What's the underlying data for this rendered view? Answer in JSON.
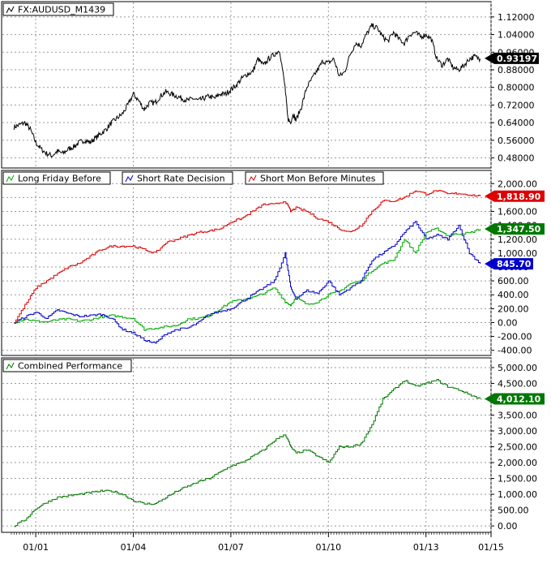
{
  "chart_data": [
    {
      "type": "line",
      "panel": "price",
      "series": [
        {
          "name": "FX:AUDUSD_M1439",
          "color": "#000000",
          "x": [
            "2000-05",
            "2000-07",
            "2000-09",
            "2000-11",
            "2001-01",
            "2001-03",
            "2001-05",
            "2001-07",
            "2001-09",
            "2001-11",
            "2002-01",
            "2002-03",
            "2002-05",
            "2002-07",
            "2002-09",
            "2002-11",
            "2003-01",
            "2003-03",
            "2003-05",
            "2003-07",
            "2003-09",
            "2003-11",
            "2004-01",
            "2004-03",
            "2004-05",
            "2004-07",
            "2004-09",
            "2004-11",
            "2005-01",
            "2005-03",
            "2005-05",
            "2005-07",
            "2005-09",
            "2005-11",
            "2006-01",
            "2006-03",
            "2006-05",
            "2006-07",
            "2006-09",
            "2006-11",
            "2007-01",
            "2007-03",
            "2007-05",
            "2007-07",
            "2007-09",
            "2007-11",
            "2008-01",
            "2008-03",
            "2008-05",
            "2008-07",
            "2008-09",
            "2008-10",
            "2008-11",
            "2008-12",
            "2009-01",
            "2009-03",
            "2009-05",
            "2009-07",
            "2009-09",
            "2009-11",
            "2010-01",
            "2010-03",
            "2010-05",
            "2010-07",
            "2010-09",
            "2010-11",
            "2011-01",
            "2011-03",
            "2011-05",
            "2011-07",
            "2011-09",
            "2011-11",
            "2012-01",
            "2012-03",
            "2012-05",
            "2012-07",
            "2012-09",
            "2012-11",
            "2013-01",
            "2013-03",
            "2013-05",
            "2013-07",
            "2013-09",
            "2013-11",
            "2014-01",
            "2014-03",
            "2014-05",
            "2014-07",
            "2014-09"
          ],
          "values": [
            0.62,
            0.63,
            0.64,
            0.61,
            0.55,
            0.52,
            0.5,
            0.49,
            0.51,
            0.5,
            0.52,
            0.53,
            0.55,
            0.56,
            0.55,
            0.57,
            0.59,
            0.61,
            0.64,
            0.66,
            0.68,
            0.72,
            0.77,
            0.74,
            0.7,
            0.73,
            0.73,
            0.76,
            0.78,
            0.77,
            0.76,
            0.75,
            0.74,
            0.75,
            0.74,
            0.75,
            0.76,
            0.75,
            0.77,
            0.77,
            0.79,
            0.81,
            0.84,
            0.86,
            0.87,
            0.93,
            0.9,
            0.93,
            0.95,
            0.97,
            0.8,
            0.66,
            0.64,
            0.68,
            0.65,
            0.71,
            0.8,
            0.84,
            0.88,
            0.92,
            0.91,
            0.93,
            0.85,
            0.87,
            0.95,
            1.0,
            0.99,
            1.04,
            1.08,
            1.07,
            1.03,
            1.01,
            1.05,
            1.02,
            1.0,
            1.04,
            1.05,
            1.03,
            1.04,
            1.02,
            0.93,
            0.9,
            0.93,
            0.89,
            0.88,
            0.9,
            0.93,
            0.94,
            0.93
          ]
        }
      ],
      "ylim": [
        0.46,
        1.16
      ],
      "yticks": [
        "0.48000",
        "0.56000",
        "0.64000",
        "0.72000",
        "0.80000",
        "0.88000",
        "0.96000",
        "1.04000",
        "1.12000"
      ],
      "ytick_values": [
        0.48,
        0.56,
        0.64,
        0.72,
        0.8,
        0.88,
        0.96,
        1.04,
        1.12
      ],
      "last_value_label": "0.93197",
      "last_value": 0.93197,
      "badge_color": "#000000",
      "grid": true
    },
    {
      "type": "line",
      "panel": "strategies",
      "series": [
        {
          "name": "Long Friday Before",
          "color": "#00aa00",
          "x": [
            "2000-05",
            "2000-09",
            "2001-01",
            "2001-05",
            "2001-09",
            "2002-01",
            "2002-05",
            "2002-09",
            "2003-01",
            "2003-05",
            "2003-09",
            "2004-01",
            "2004-05",
            "2004-09",
            "2005-01",
            "2005-05",
            "2005-09",
            "2006-01",
            "2006-05",
            "2006-09",
            "2007-01",
            "2007-05",
            "2007-09",
            "2008-01",
            "2008-05",
            "2008-09",
            "2008-11",
            "2009-01",
            "2009-05",
            "2009-09",
            "2010-01",
            "2010-05",
            "2010-09",
            "2011-01",
            "2011-05",
            "2011-09",
            "2012-01",
            "2012-05",
            "2012-09",
            "2013-01",
            "2013-05",
            "2013-09",
            "2014-01",
            "2014-05",
            "2014-09"
          ],
          "values": [
            0,
            50,
            20,
            10,
            40,
            50,
            20,
            40,
            80,
            100,
            80,
            60,
            -100,
            -80,
            -60,
            -40,
            50,
            60,
            100,
            200,
            300,
            330,
            360,
            420,
            500,
            300,
            250,
            360,
            260,
            300,
            400,
            450,
            560,
            600,
            750,
            850,
            900,
            1200,
            1000,
            1300,
            1350,
            1250,
            1280,
            1290,
            1347.5
          ]
        },
        {
          "name": "Short Rate Decision",
          "color": "#0000cc",
          "x": [
            "2000-05",
            "2000-09",
            "2001-01",
            "2001-05",
            "2001-09",
            "2002-01",
            "2002-05",
            "2002-09",
            "2003-01",
            "2003-05",
            "2003-09",
            "2004-01",
            "2004-05",
            "2004-09",
            "2005-01",
            "2005-05",
            "2005-09",
            "2006-01",
            "2006-05",
            "2006-09",
            "2007-01",
            "2007-05",
            "2007-09",
            "2008-01",
            "2008-05",
            "2008-09",
            "2008-11",
            "2009-01",
            "2009-05",
            "2009-09",
            "2010-01",
            "2010-05",
            "2010-09",
            "2011-01",
            "2011-05",
            "2011-09",
            "2012-01",
            "2012-05",
            "2012-09",
            "2013-01",
            "2013-05",
            "2013-09",
            "2014-01",
            "2014-05",
            "2014-09"
          ],
          "values": [
            0,
            80,
            150,
            60,
            180,
            130,
            90,
            100,
            120,
            60,
            -100,
            -150,
            -250,
            -300,
            -160,
            -100,
            -80,
            0,
            120,
            160,
            200,
            300,
            400,
            500,
            600,
            1000,
            500,
            350,
            460,
            420,
            600,
            400,
            500,
            600,
            900,
            1000,
            1100,
            1300,
            1450,
            1200,
            1260,
            1200,
            1400,
            1000,
            845.7
          ]
        },
        {
          "name": "Short Mon Before Minutes",
          "color": "#dd0000",
          "x": [
            "2000-05",
            "2000-09",
            "2001-01",
            "2001-05",
            "2001-09",
            "2002-01",
            "2002-05",
            "2002-09",
            "2003-01",
            "2003-05",
            "2003-09",
            "2004-01",
            "2004-05",
            "2004-09",
            "2005-01",
            "2005-05",
            "2005-09",
            "2006-01",
            "2006-05",
            "2006-09",
            "2007-01",
            "2007-05",
            "2007-09",
            "2008-01",
            "2008-05",
            "2008-09",
            "2008-11",
            "2009-01",
            "2009-05",
            "2009-09",
            "2010-01",
            "2010-05",
            "2010-09",
            "2011-01",
            "2011-05",
            "2011-09",
            "2012-01",
            "2012-05",
            "2012-09",
            "2013-01",
            "2013-05",
            "2013-09",
            "2014-01",
            "2014-05",
            "2014-09"
          ],
          "values": [
            0,
            250,
            500,
            600,
            700,
            800,
            850,
            950,
            1050,
            1100,
            1100,
            1100,
            1050,
            1000,
            1150,
            1200,
            1250,
            1300,
            1320,
            1350,
            1450,
            1500,
            1600,
            1700,
            1700,
            1750,
            1600,
            1650,
            1600,
            1500,
            1450,
            1350,
            1300,
            1400,
            1600,
            1750,
            1750,
            1800,
            1900,
            1850,
            1900,
            1850,
            1860,
            1840,
            1818.9
          ]
        }
      ],
      "ylim": [
        -450,
        2050
      ],
      "yticks": [
        "-400.00",
        "-200.00",
        "0.00",
        "200.00",
        "400.00",
        "600.00",
        "800.00",
        "1,000.00",
        "1,200.00",
        "1,400.00",
        "1,600.00",
        "1,800.00",
        "2,000.00"
      ],
      "ytick_values": [
        -400,
        -200,
        0,
        200,
        400,
        600,
        800,
        1000,
        1200,
        1400,
        1600,
        1800,
        2000
      ],
      "last_value_labels": [
        "1,818.90",
        "1,347.50",
        "845.70"
      ],
      "last_values": [
        1818.9,
        1347.5,
        845.7
      ],
      "badge_colors": [
        "#dd0000",
        "#007700",
        "#0000cc"
      ],
      "grid": true
    },
    {
      "type": "line",
      "panel": "combined",
      "series": [
        {
          "name": "Combined Performance",
          "color": "#007700",
          "x": [
            "2000-05",
            "2000-09",
            "2001-01",
            "2001-05",
            "2001-09",
            "2002-01",
            "2002-05",
            "2002-09",
            "2003-01",
            "2003-05",
            "2003-09",
            "2004-01",
            "2004-05",
            "2004-09",
            "2005-01",
            "2005-05",
            "2005-09",
            "2006-01",
            "2006-05",
            "2006-09",
            "2007-01",
            "2007-05",
            "2007-09",
            "2008-01",
            "2008-05",
            "2008-09",
            "2008-11",
            "2009-01",
            "2009-05",
            "2009-09",
            "2010-01",
            "2010-05",
            "2010-09",
            "2011-01",
            "2011-05",
            "2011-09",
            "2012-01",
            "2012-05",
            "2012-09",
            "2013-01",
            "2013-05",
            "2013-09",
            "2014-01",
            "2014-05",
            "2014-09"
          ],
          "values": [
            0,
            200,
            550,
            750,
            900,
            950,
            1000,
            1050,
            1100,
            1100,
            1000,
            800,
            700,
            700,
            900,
            1100,
            1250,
            1400,
            1500,
            1700,
            1900,
            2000,
            2200,
            2400,
            2700,
            2900,
            2500,
            2300,
            2400,
            2200,
            2000,
            2500,
            2500,
            2600,
            3200,
            4000,
            4300,
            4600,
            4400,
            4500,
            4600,
            4400,
            4300,
            4150,
            4012.1
          ]
        }
      ],
      "ylim": [
        -100,
        5050
      ],
      "yticks": [
        "0.00",
        "500.00",
        "1,000.00",
        "1,500.00",
        "2,000.00",
        "2,500.00",
        "3,000.00",
        "3,500.00",
        "4,000.00",
        "4,500.00",
        "5,000.00"
      ],
      "ytick_values": [
        0,
        500,
        1000,
        1500,
        2000,
        2500,
        3000,
        3500,
        4000,
        4500,
        5000
      ],
      "last_value_label": "4,012.10",
      "last_value": 4012.1,
      "badge_color": "#007700",
      "grid": true
    }
  ],
  "x_axis": {
    "tick_labels": [
      "01/01",
      "01/04",
      "01/07",
      "01/10",
      "01/13",
      "01/15"
    ],
    "tick_dates": [
      "2001-01",
      "2004-01",
      "2007-01",
      "2010-01",
      "2013-01",
      "2015-01"
    ],
    "range": [
      "2000-04",
      "2015-01"
    ]
  },
  "colors": {
    "grid": "#9a9a9a",
    "panel_border": "#000000"
  }
}
